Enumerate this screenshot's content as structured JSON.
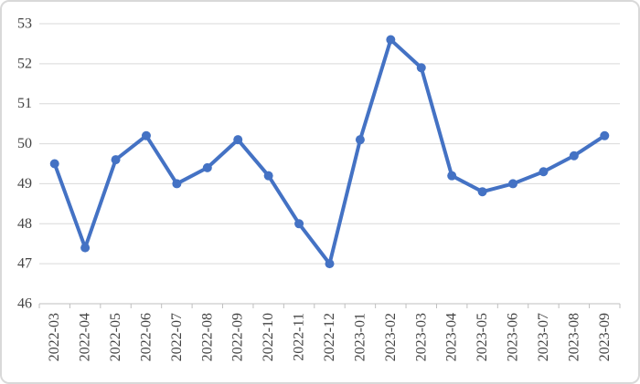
{
  "chart_data": {
    "type": "line",
    "categories": [
      "2022-03",
      "2022-04",
      "2022-05",
      "2022-06",
      "2022-07",
      "2022-08",
      "2022-09",
      "2022-10",
      "2022-11",
      "2022-12",
      "2023-01",
      "2023-02",
      "2023-03",
      "2023-04",
      "2023-05",
      "2023-06",
      "2023-07",
      "2023-08",
      "2023-09"
    ],
    "values": [
      49.5,
      47.4,
      49.6,
      50.2,
      49.0,
      49.4,
      50.1,
      49.2,
      48.0,
      47.0,
      50.1,
      52.6,
      51.9,
      49.2,
      48.8,
      49.0,
      49.3,
      49.7,
      50.2
    ],
    "title": "",
    "xlabel": "",
    "ylabel": "",
    "ylim": [
      46,
      53
    ],
    "y_ticks": [
      46,
      47,
      48,
      49,
      50,
      51,
      52,
      53
    ],
    "grid": true,
    "legend": false,
    "marker": "circle",
    "x_label_rotation": -90
  },
  "style": {
    "line_color": "#4472C4",
    "marker_color": "#4472C4",
    "gridline_color": "#d9d9d9",
    "axis_color": "#bfbfbf",
    "label_color": "#444444",
    "background": "#ffffff",
    "border_color": "#d9d9d9"
  }
}
